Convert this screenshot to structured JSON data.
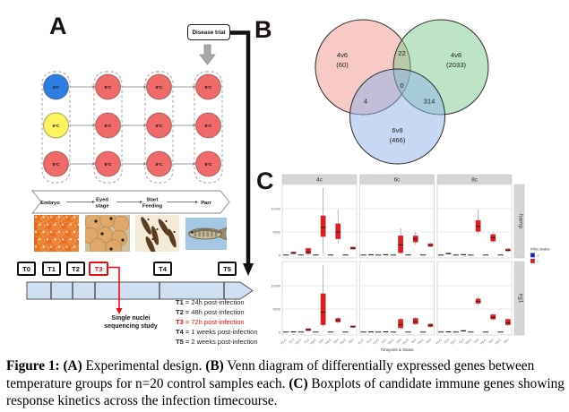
{
  "panelA": {
    "label": "A",
    "disease_trial_label": "Disease trial",
    "temp_grid": {
      "columns": [
        {
          "circles": [
            {
              "label": "4°C",
              "color": "#2e7de0"
            },
            {
              "label": "6°C",
              "color": "#fdf45f"
            },
            {
              "label": "8°C",
              "color": "#f16a6a"
            }
          ]
        },
        {
          "circles": [
            {
              "label": "8°C",
              "color": "#f16a6a"
            },
            {
              "label": "8°C",
              "color": "#f16a6a"
            },
            {
              "label": "8°C",
              "color": "#f16a6a"
            }
          ]
        },
        {
          "circles": [
            {
              "label": "8°C",
              "color": "#f16a6a"
            },
            {
              "label": "8°C",
              "color": "#f16a6a"
            },
            {
              "label": "8°C",
              "color": "#f16a6a"
            }
          ]
        },
        {
          "circles": [
            {
              "label": "8°C",
              "color": "#f16a6a"
            },
            {
              "label": "8°C",
              "color": "#f16a6a"
            },
            {
              "label": "8°C",
              "color": "#f16a6a"
            }
          ]
        }
      ]
    },
    "stages": [
      [
        "Embryo"
      ],
      [
        "Eyed",
        "stage"
      ],
      [
        "Start",
        "Feeding"
      ],
      [
        "Parr"
      ]
    ],
    "photos": [
      "salmon-eggs-photo",
      "eyed-eggs-photo",
      "alevin-photo",
      "parr-photo"
    ],
    "timeline": {
      "points": [
        {
          "label": "T0",
          "highlight": false
        },
        {
          "label": "T1",
          "highlight": false
        },
        {
          "label": "T2",
          "highlight": false
        },
        {
          "label": "T3",
          "highlight": true
        },
        {
          "label": "T4",
          "highlight": false
        },
        {
          "label": "T5",
          "highlight": false
        }
      ],
      "annotation_lines": [
        "Single nuclei",
        "sequencing study"
      ],
      "legend": [
        {
          "key": "T1",
          "rest": " = 24h post-infection",
          "highlight": false
        },
        {
          "key": "T2",
          "rest": " = 48h post-infection",
          "highlight": false
        },
        {
          "key": "T3",
          "rest": " = 72h post-infection",
          "highlight": true
        },
        {
          "key": "T4",
          "rest": " = 1 weeks post-infection",
          "highlight": false
        },
        {
          "key": "T5",
          "rest": " = 2 weeks post-infection",
          "highlight": false
        }
      ]
    }
  },
  "panelB": {
    "label": "B"
  },
  "panelC": {
    "label": "C"
  },
  "caption_parts": [
    {
      "text": "Figure 1: ",
      "bold": true
    },
    {
      "text": "(A)",
      "bold": true
    },
    {
      "text": " Experimental design. ",
      "bold": false
    },
    {
      "text": "(B)",
      "bold": true
    },
    {
      "text": " Venn diagram of differentially expressed genes between temperature groups for n=20 control samples each. ",
      "bold": false
    },
    {
      "text": "(C)",
      "bold": true
    },
    {
      "text": " Boxplots of candidate immune genes showing response kinetics across the infection timecourse.",
      "bold": false
    }
  ],
  "chart_data": [
    {
      "type": "venn",
      "sets": [
        {
          "name": "4v6",
          "count_label": "(60)",
          "color": "#f0968c"
        },
        {
          "name": "4v8",
          "count_label": "(2033)",
          "color": "#7cc98e"
        },
        {
          "name": "6v8",
          "count_label": "(466)",
          "color": "#8fb2ec"
        }
      ],
      "overlaps": [
        {
          "sets": [
            "4v6",
            "4v8"
          ],
          "value": "22"
        },
        {
          "sets": [
            "4v6",
            "6v8"
          ],
          "value": "4"
        },
        {
          "sets": [
            "4v8",
            "6v8"
          ],
          "value": "314"
        },
        {
          "sets": [
            "4v6",
            "4v8",
            "6v8"
          ],
          "value": "0"
        }
      ]
    },
    {
      "type": "boxplot",
      "facet_cols": [
        "4c",
        "6c",
        "8c"
      ],
      "facet_rows": [
        "hamp",
        "irg1"
      ],
      "x_categories": [
        "T1-C",
        "T1-I",
        "T2-C",
        "T2-I",
        "T3-C",
        "T3-I",
        "T4-C",
        "T4-I",
        "T5-C",
        "T5-I"
      ],
      "xlabel": "Timepoint & Status",
      "ylim": [
        0,
        15500
      ],
      "yticks": [
        0,
        5000,
        10000
      ],
      "legend": {
        "title": "Infec.status",
        "items": [
          {
            "label": "c",
            "color": "#2323cc"
          },
          {
            "label": "i",
            "color": "#d62020"
          }
        ]
      },
      "colors": {
        "infected": "#e8191c",
        "control": "#4a4a4a"
      },
      "boxes": {
        "hamp": {
          "4c": [
            [
              0,
              20,
              60,
              100,
              120
            ],
            [
              200,
              300,
              500,
              700,
              800
            ],
            [
              0,
              20,
              60,
              100,
              120
            ],
            [
              100,
              300,
              700,
              1500,
              1600
            ],
            [
              0,
              20,
              60,
              100,
              120
            ],
            [
              500,
              4000,
              6000,
              8500,
              14500
            ],
            [
              0,
              20,
              60,
              100,
              120
            ],
            [
              2500,
              3500,
              5000,
              6800,
              9800
            ],
            [
              0,
              20,
              60,
              100,
              120
            ],
            [
              1200,
              1300,
              1500,
              1800,
              1900
            ]
          ],
          "6c": [
            [
              0,
              20,
              60,
              100,
              120
            ],
            [
              50,
              80,
              130,
              180,
              220
            ],
            [
              0,
              20,
              60,
              100,
              120
            ],
            [
              50,
              80,
              130,
              180,
              220
            ],
            [
              0,
              20,
              60,
              100,
              120
            ],
            [
              300,
              500,
              2200,
              4200,
              5800
            ],
            [
              0,
              20,
              60,
              100,
              120
            ],
            [
              2200,
              2800,
              3500,
              4200,
              5000
            ],
            [
              0,
              20,
              60,
              100,
              120
            ],
            [
              1700,
              1900,
              2100,
              2500,
              2700
            ]
          ],
          "8c": [
            [
              0,
              20,
              60,
              100,
              120
            ],
            [
              150,
              250,
              350,
              480,
              560
            ],
            [
              0,
              20,
              60,
              100,
              120
            ],
            [
              40,
              90,
              140,
              200,
              240
            ],
            [
              0,
              20,
              60,
              100,
              120
            ],
            [
              4600,
              5100,
              6200,
              7500,
              9700
            ],
            [
              0,
              20,
              60,
              100,
              120
            ],
            [
              2600,
              3000,
              3800,
              4500,
              4900
            ],
            [
              0,
              20,
              60,
              100,
              120
            ],
            [
              700,
              900,
              1100,
              1400,
              1600
            ]
          ]
        },
        "irg1": {
          "4c": [
            [
              0,
              20,
              60,
              100,
              120
            ],
            [
              0,
              40,
              90,
              150,
              190
            ],
            [
              0,
              20,
              60,
              100,
              120
            ],
            [
              200,
              350,
              550,
              800,
              900
            ],
            [
              0,
              20,
              60,
              100,
              120
            ],
            [
              1200,
              1600,
              4300,
              8300,
              14500
            ],
            [
              0,
              20,
              60,
              100,
              120
            ],
            [
              1800,
              2200,
              2500,
              3000,
              3400
            ],
            [
              0,
              20,
              60,
              100,
              120
            ],
            [
              900,
              1050,
              1200,
              1400,
              1500
            ]
          ],
          "6c": [
            [
              0,
              20,
              60,
              100,
              120
            ],
            [
              0,
              40,
              90,
              150,
              190
            ],
            [
              0,
              20,
              60,
              100,
              120
            ],
            [
              0,
              40,
              90,
              150,
              190
            ],
            [
              0,
              20,
              60,
              100,
              120
            ],
            [
              500,
              900,
              1600,
              2800,
              3200
            ],
            [
              0,
              20,
              60,
              100,
              120
            ],
            [
              1500,
              1800,
              2300,
              3000,
              3300
            ],
            [
              0,
              20,
              60,
              100,
              120
            ],
            [
              1000,
              1200,
              1500,
              1800,
              2000
            ]
          ],
          "8c": [
            [
              0,
              20,
              60,
              100,
              120
            ],
            [
              0,
              40,
              90,
              150,
              190
            ],
            [
              0,
              20,
              60,
              100,
              120
            ],
            [
              100,
              200,
              300,
              420,
              500
            ],
            [
              0,
              20,
              60,
              100,
              120
            ],
            [
              5800,
              6200,
              6600,
              7200,
              7600
            ],
            [
              0,
              20,
              60,
              100,
              120
            ],
            [
              2500,
              2800,
              3200,
              3800,
              4000
            ],
            [
              0,
              20,
              60,
              100,
              120
            ],
            [
              1300,
              1600,
              2000,
              2800,
              3000
            ]
          ]
        }
      }
    }
  ]
}
